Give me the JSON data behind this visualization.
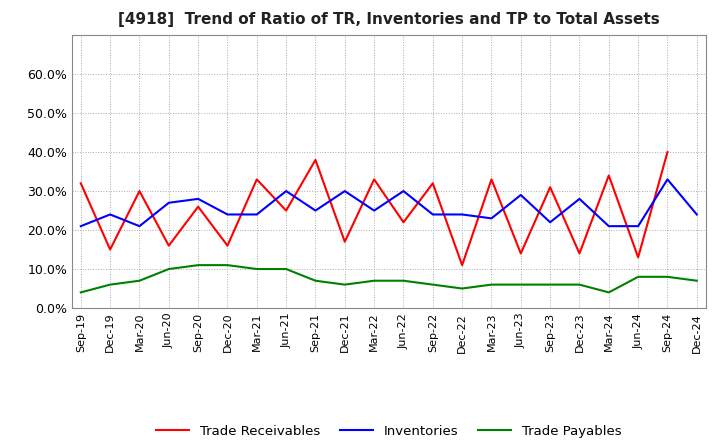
{
  "title": "[4918]  Trend of Ratio of TR, Inventories and TP to Total Assets",
  "x_labels": [
    "Sep-19",
    "Dec-19",
    "Mar-20",
    "Jun-20",
    "Sep-20",
    "Dec-20",
    "Mar-21",
    "Jun-21",
    "Sep-21",
    "Dec-21",
    "Mar-22",
    "Jun-22",
    "Sep-22",
    "Dec-22",
    "Mar-23",
    "Jun-23",
    "Sep-23",
    "Dec-23",
    "Mar-24",
    "Jun-24",
    "Sep-24",
    "Dec-24"
  ],
  "trade_receivables": [
    0.32,
    0.15,
    0.3,
    0.16,
    0.26,
    0.16,
    0.33,
    0.25,
    0.38,
    0.17,
    0.33,
    0.22,
    0.32,
    0.11,
    0.33,
    0.14,
    0.31,
    0.14,
    0.34,
    0.13,
    0.4,
    null
  ],
  "inventories": [
    0.21,
    0.24,
    0.21,
    0.27,
    0.28,
    0.24,
    0.24,
    0.3,
    0.25,
    0.3,
    0.25,
    0.3,
    0.24,
    0.24,
    0.23,
    0.29,
    0.22,
    0.28,
    0.21,
    0.21,
    0.33,
    0.24
  ],
  "trade_payables": [
    0.04,
    0.06,
    0.07,
    0.1,
    0.11,
    0.11,
    0.1,
    0.1,
    0.07,
    0.06,
    0.07,
    0.07,
    0.06,
    0.05,
    0.06,
    0.06,
    0.06,
    0.06,
    0.04,
    0.08,
    0.08,
    0.07
  ],
  "tr_color": "#ff0000",
  "inv_color": "#0000ff",
  "tp_color": "#008000",
  "ylim": [
    0.0,
    0.7
  ],
  "yticks": [
    0.0,
    0.1,
    0.2,
    0.3,
    0.4,
    0.5,
    0.6
  ],
  "background_color": "#ffffff",
  "grid_color": "#aaaaaa",
  "title_fontsize": 11,
  "line_width": 1.5
}
